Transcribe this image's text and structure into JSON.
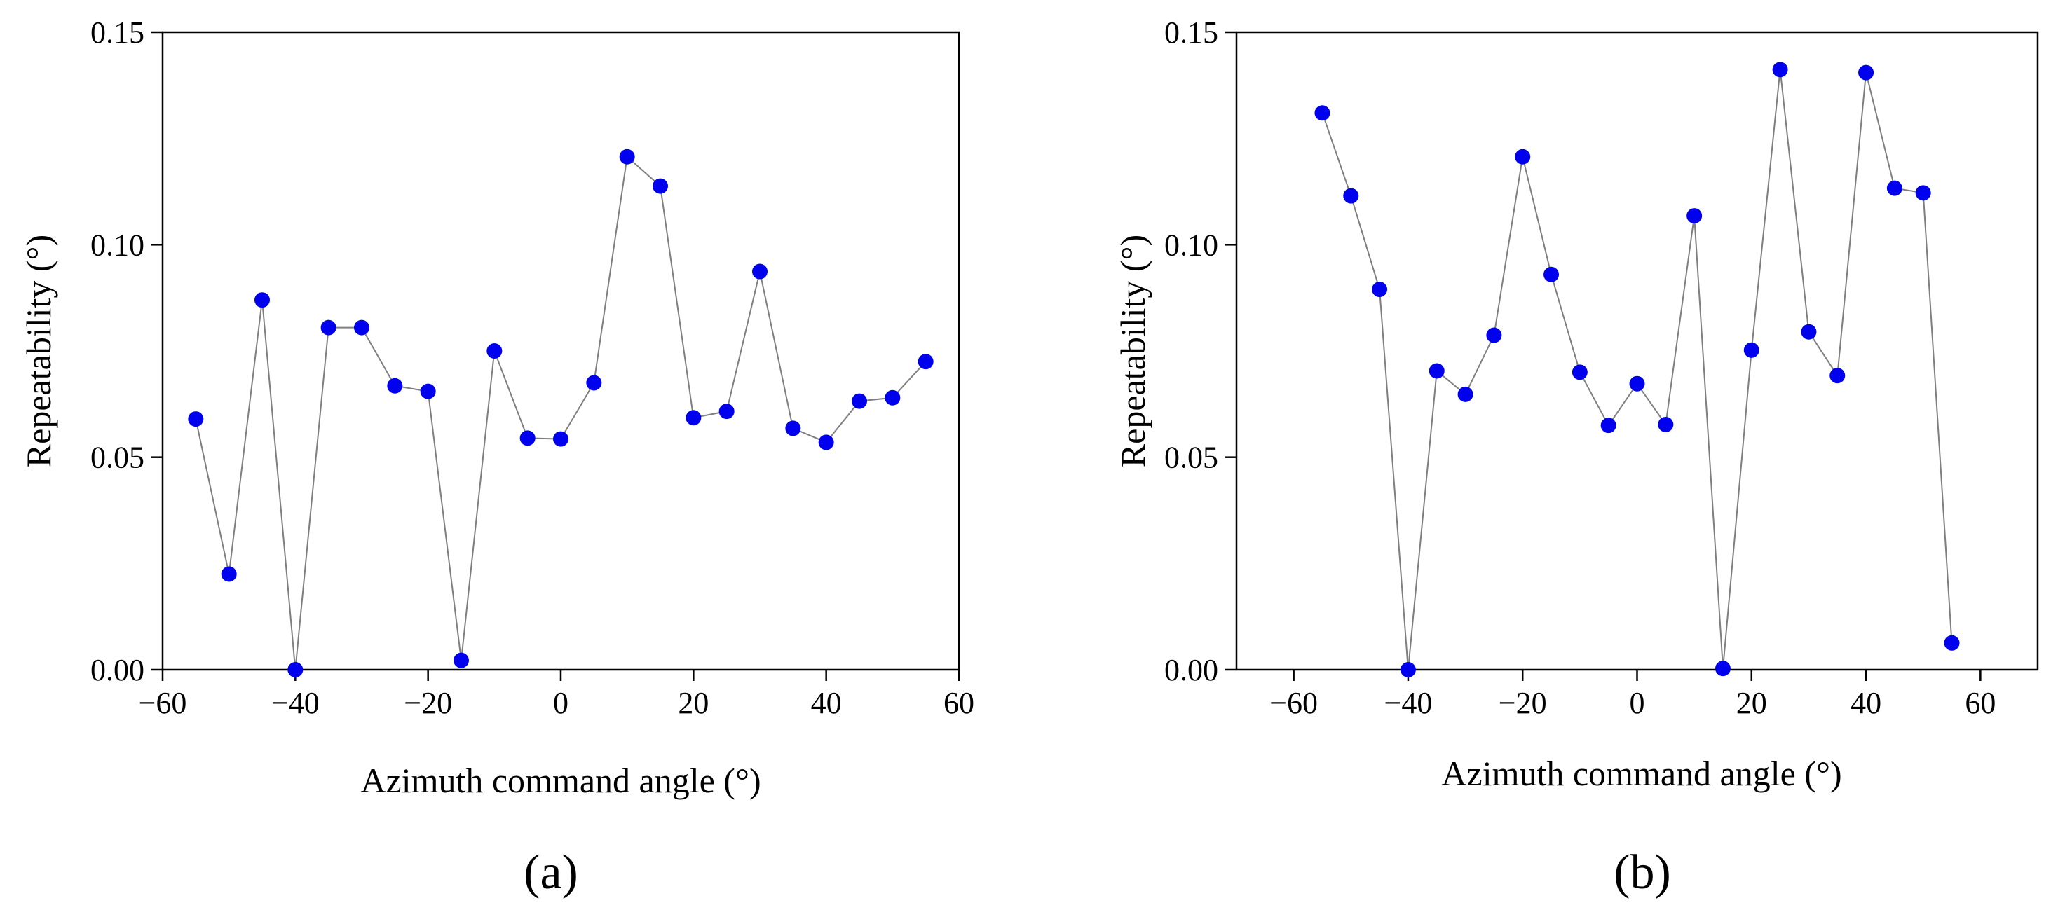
{
  "figure": {
    "background_color": "#ffffff"
  },
  "chart_data": [
    {
      "type": "line",
      "panel_label": "(a)",
      "xlabel": "Azimuth command angle (°)",
      "ylabel": "Repeatability (°)",
      "xlim": [
        -60,
        60
      ],
      "ylim": [
        0,
        0.15
      ],
      "xticks": [
        -60,
        -40,
        -20,
        0,
        20,
        40,
        60
      ],
      "yticks": [
        0.0,
        0.05,
        0.1,
        0.15
      ],
      "xtick_labels": [
        "−60",
        "−40",
        "−20",
        "0",
        "20",
        "40",
        "60"
      ],
      "ytick_labels": [
        "0.00",
        "0.05",
        "0.10",
        "0.15"
      ],
      "grid": false,
      "marker_color": "#0000ee",
      "line_color": "#7f7f7f",
      "series": [
        {
          "name": "Repeatability",
          "x": [
            -55,
            -50,
            -45,
            -40,
            -35,
            -30,
            -25,
            -20,
            -15,
            -10,
            -5,
            0,
            5,
            10,
            15,
            20,
            25,
            30,
            35,
            40,
            45,
            50,
            55
          ],
          "y": [
            0.059,
            0.0225,
            0.087,
            0.0,
            0.0805,
            0.0805,
            0.0668,
            0.0655,
            0.0022,
            0.075,
            0.0545,
            0.0543,
            0.0675,
            0.1207,
            0.1138,
            0.0593,
            0.0608,
            0.0937,
            0.0568,
            0.0535,
            0.0632,
            0.064,
            0.0725
          ]
        }
      ]
    },
    {
      "type": "line",
      "panel_label": "(b)",
      "xlabel": "Azimuth command angle (°)",
      "ylabel": "Repeatability (°)",
      "xlim": [
        -70,
        70
      ],
      "ylim": [
        0,
        0.15
      ],
      "xticks": [
        -60,
        -40,
        -20,
        0,
        20,
        40,
        60
      ],
      "yticks": [
        0.0,
        0.05,
        0.1,
        0.15
      ],
      "xtick_labels": [
        "−60",
        "−40",
        "−20",
        "0",
        "20",
        "40",
        "60"
      ],
      "ytick_labels": [
        "0.00",
        "0.05",
        "0.10",
        "0.15"
      ],
      "grid": false,
      "marker_color": "#0000ee",
      "line_color": "#7f7f7f",
      "series": [
        {
          "name": "Repeatability",
          "x": [
            -55,
            -50,
            -45,
            -40,
            -35,
            -30,
            -25,
            -20,
            -15,
            -10,
            -5,
            0,
            5,
            10,
            15,
            20,
            25,
            30,
            35,
            40,
            45,
            50,
            55
          ],
          "y": [
            0.131,
            0.1115,
            0.0895,
            0.0,
            0.0703,
            0.0648,
            0.0787,
            0.1207,
            0.093,
            0.07,
            0.0575,
            0.0673,
            0.0577,
            0.1068,
            0.0003,
            0.0752,
            0.1412,
            0.0795,
            0.0692,
            0.1405,
            0.1133,
            0.1122,
            0.0063
          ]
        }
      ]
    }
  ]
}
